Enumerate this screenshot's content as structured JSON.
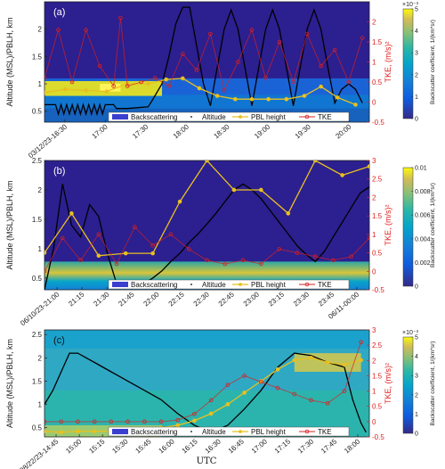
{
  "figure": {
    "x_axis_label": "UTC",
    "y_left_label": "Altitude (MSL)/PBLH, km",
    "y_right_label": "TKE, (m/s)²",
    "colorbar_label": "Backscatter coefficient, 1/(km*sr)",
    "legend": [
      "Backscattering",
      "Altitude",
      "PBL height",
      "TKE"
    ],
    "colors": {
      "pbl": "#e8c020",
      "tke": "#d82020",
      "altitude": "#000000",
      "background": "#2c1f8f"
    }
  },
  "chart_data": [
    {
      "type": "line",
      "panel": "(a)",
      "x_ticks": [
        "03/12/23-16:30",
        "17:00",
        "17:30",
        "18:00",
        "18:30",
        "19:00",
        "19:30",
        "20:00"
      ],
      "xlim": [
        0,
        235
      ],
      "ylim": [
        0.3,
        2.5
      ],
      "y_ticks": [
        "0.5",
        "1",
        "1.5",
        "2"
      ],
      "y2lim": [
        -0.5,
        2.5
      ],
      "y2_ticks": [
        "-0.5",
        "0",
        "0.5",
        "1",
        "1.5",
        "2"
      ],
      "colorbar": {
        "exponent": "×10⁻³",
        "ticks": [
          "0",
          "1",
          "2",
          "3",
          "4",
          "5"
        ]
      },
      "series": [
        {
          "name": "Altitude",
          "x": [
            0,
            8,
            10,
            12,
            14,
            16,
            18,
            20,
            22,
            24,
            26,
            28,
            30,
            32,
            34,
            36,
            38,
            40,
            42,
            44,
            50,
            52,
            60,
            75,
            78,
            85,
            90,
            95,
            100,
            105,
            110,
            115,
            120,
            125,
            130,
            135,
            140,
            145,
            150,
            155,
            160,
            165,
            170,
            175,
            180,
            185,
            190,
            195,
            200,
            205,
            210,
            215,
            220,
            225,
            230
          ],
          "y": [
            0.62,
            0.62,
            0.45,
            0.62,
            0.45,
            0.62,
            0.45,
            0.62,
            0.45,
            0.62,
            0.45,
            0.62,
            0.45,
            0.62,
            0.45,
            0.62,
            0.45,
            0.62,
            0.45,
            0.62,
            0.62,
            0.55,
            0.55,
            0.58,
            0.7,
            1.0,
            1.5,
            2.1,
            2.4,
            2.4,
            1.7,
            1.0,
            0.6,
            1.3,
            2.0,
            2.35,
            2.0,
            1.3,
            0.6,
            1.3,
            2.0,
            2.35,
            2.0,
            1.3,
            0.6,
            1.3,
            2.0,
            2.35,
            2.0,
            1.3,
            0.65,
            0.9,
            1.0,
            0.9,
            0.65
          ]
        },
        {
          "name": "PBL height",
          "x": [
            0,
            15,
            30,
            45,
            60,
            75,
            88,
            100,
            112,
            125,
            138,
            150,
            162,
            175,
            188,
            200,
            212,
            225
          ],
          "y": [
            0.84,
            0.9,
            0.88,
            0.86,
            1.0,
            1.0,
            1.08,
            1.1,
            0.92,
            0.78,
            0.72,
            0.72,
            0.72,
            0.72,
            0.78,
            0.95,
            0.75,
            0.62
          ]
        },
        {
          "name": "TKE",
          "x": [
            0,
            10,
            20,
            30,
            40,
            50,
            55,
            60,
            70,
            80,
            90,
            100,
            110,
            120,
            130,
            140,
            150,
            160,
            170,
            180,
            190,
            200,
            210,
            220,
            230
          ],
          "y": [
            0.6,
            1.8,
            0.5,
            1.8,
            0.9,
            0.4,
            2.1,
            0.4,
            0.5,
            0.6,
            0.4,
            1.2,
            0.8,
            1.7,
            0.3,
            1.0,
            1.8,
            0.6,
            1.5,
            0.5,
            1.7,
            0.9,
            1.3,
            0.5,
            1.6
          ]
        }
      ]
    },
    {
      "type": "line",
      "panel": "(b)",
      "x_ticks": [
        "06/10/23-21:00",
        "21:15",
        "21:30",
        "21:45",
        "22:00",
        "22:15",
        "22:30",
        "22:45",
        "23:00",
        "23:15",
        "23:30",
        "23:45",
        "06/11-00:00"
      ],
      "xlim": [
        0,
        180
      ],
      "ylim": [
        0.3,
        2.5
      ],
      "y_ticks": [
        "0.5",
        "1",
        "1.5",
        "2",
        "2.5"
      ],
      "y2lim": [
        -0.5,
        3
      ],
      "y2_ticks": [
        "-0.5",
        "0",
        "0.5",
        "1",
        "1.5",
        "2",
        "2.5",
        "3"
      ],
      "colorbar": {
        "exponent": "",
        "ticks": [
          "0",
          "0.002",
          "0.004",
          "0.006",
          "0.008",
          "0.01"
        ]
      },
      "series": [
        {
          "name": "Altitude",
          "x": [
            0,
            5,
            10,
            15,
            20,
            25,
            30,
            35,
            40,
            45,
            50,
            55,
            60,
            65,
            70,
            75,
            80,
            85,
            90,
            95,
            100,
            105,
            110,
            115,
            120,
            125,
            130,
            135,
            140,
            145,
            150,
            155,
            160,
            165,
            170,
            175,
            180
          ],
          "y": [
            0.3,
            1.0,
            2.1,
            1.4,
            1.2,
            1.75,
            1.55,
            0.9,
            0.4,
            0.35,
            0.35,
            0.4,
            0.5,
            0.62,
            0.78,
            0.92,
            1.1,
            1.25,
            1.42,
            1.6,
            1.8,
            2.0,
            2.1,
            2.0,
            1.85,
            1.65,
            1.45,
            1.25,
            1.05,
            0.9,
            0.78,
            0.95,
            1.2,
            1.45,
            1.7,
            1.95,
            2.05
          ]
        },
        {
          "name": "PBL height",
          "x": [
            0,
            15,
            30,
            45,
            60,
            75,
            90,
            105,
            120,
            135,
            150,
            165,
            180
          ],
          "y": [
            0.93,
            1.6,
            0.88,
            0.92,
            0.92,
            1.8,
            2.5,
            2.0,
            2.0,
            1.6,
            2.5,
            2.25,
            2.4
          ]
        },
        {
          "name": "TKE",
          "x": [
            0,
            10,
            20,
            30,
            40,
            50,
            60,
            70,
            80,
            90,
            100,
            110,
            120,
            130,
            140,
            150,
            160,
            170,
            180
          ],
          "y": [
            0.0,
            0.9,
            0.3,
            1.0,
            0.2,
            1.2,
            0.7,
            1.0,
            0.6,
            0.3,
            0.2,
            0.3,
            0.2,
            0.6,
            0.5,
            0.4,
            0.3,
            0.4,
            0.9
          ]
        }
      ]
    },
    {
      "type": "line",
      "panel": "(c)",
      "x_ticks": [
        "08/22/23-14:45",
        "15:00",
        "15:15",
        "15:30",
        "15:45",
        "16:00",
        "16:15",
        "16:30",
        "16:45",
        "17:00",
        "17:15",
        "17:30",
        "17:45",
        "18:00"
      ],
      "xlim": [
        0,
        195
      ],
      "ylim": [
        0.3,
        2.6
      ],
      "y_ticks": [
        "0.5",
        "1",
        "1.5",
        "2",
        "2.5"
      ],
      "y2lim": [
        -0.5,
        3
      ],
      "y2_ticks": [
        "-0.5",
        "0",
        "0.5",
        "1",
        "1.5",
        "2",
        "2.5",
        "3"
      ],
      "colorbar": {
        "exponent": "×10⁻³",
        "ticks": [
          "0",
          "1",
          "2",
          "3",
          "4",
          "5"
        ]
      },
      "series": [
        {
          "name": "Altitude",
          "x": [
            0,
            5,
            10,
            15,
            20,
            25,
            30,
            40,
            50,
            60,
            70,
            80,
            90,
            100,
            110,
            120,
            130,
            140,
            150,
            160,
            170,
            180,
            185,
            190,
            193
          ],
          "y": [
            1.0,
            1.3,
            1.7,
            2.1,
            2.1,
            2.0,
            1.9,
            1.7,
            1.5,
            1.3,
            1.1,
            0.8,
            0.55,
            0.4,
            0.55,
            0.9,
            1.3,
            1.8,
            2.1,
            2.05,
            1.9,
            1.8,
            1.1,
            0.6,
            0.4
          ]
        },
        {
          "name": "PBL height",
          "x": [
            0,
            10,
            20,
            30,
            40,
            50,
            60,
            70,
            80,
            90,
            100,
            110,
            120,
            130,
            140,
            150,
            160,
            170,
            180,
            190
          ],
          "y": [
            0.42,
            0.4,
            0.42,
            0.42,
            0.42,
            0.42,
            0.45,
            0.5,
            0.55,
            0.65,
            0.8,
            1.0,
            1.25,
            1.5,
            1.75,
            1.95,
            2.0,
            1.9,
            1.85,
            1.95
          ]
        },
        {
          "name": "TKE",
          "x": [
            0,
            10,
            20,
            30,
            40,
            50,
            60,
            70,
            80,
            90,
            100,
            110,
            120,
            130,
            140,
            150,
            160,
            170,
            180,
            190
          ],
          "y": [
            0.0,
            0.0,
            0.0,
            0.0,
            0.0,
            0.0,
            0.0,
            0.0,
            0.05,
            0.25,
            0.7,
            1.2,
            1.5,
            1.3,
            1.1,
            0.9,
            0.7,
            0.6,
            1.0,
            2.6
          ]
        }
      ]
    }
  ]
}
